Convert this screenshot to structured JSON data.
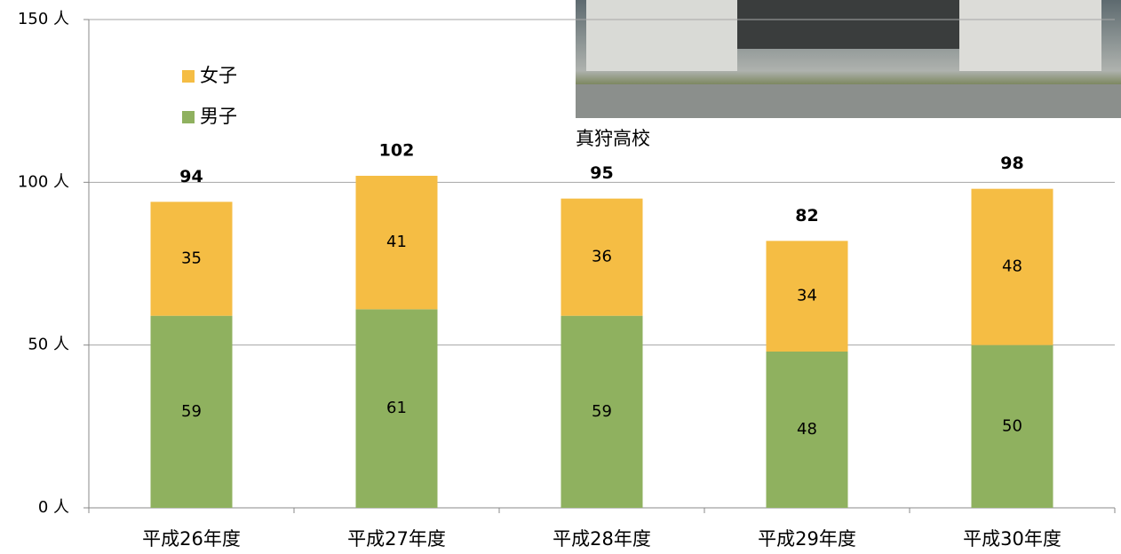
{
  "chart_data": {
    "type": "stacked_bar",
    "categories": [
      "平成26年度",
      "平成27年度",
      "平成28年度",
      "平成29年度",
      "平成30年度"
    ],
    "series": [
      {
        "name": "男子",
        "color": "#8fb15f",
        "values": [
          59,
          61,
          59,
          48,
          50
        ]
      },
      {
        "name": "女子",
        "color": "#f5bd44",
        "values": [
          35,
          41,
          36,
          34,
          48
        ]
      }
    ],
    "totals": [
      94,
      102,
      95,
      82,
      98
    ],
    "ylim": [
      0,
      150
    ],
    "yticks": [
      {
        "value": 0,
        "label": "0 人"
      },
      {
        "value": 50,
        "label": "50 人"
      },
      {
        "value": 100,
        "label": "100 人"
      },
      {
        "value": 150,
        "label": "150 人"
      }
    ],
    "grid": true,
    "legend": "upper left"
  },
  "photo": {
    "caption": "真狩高校"
  }
}
